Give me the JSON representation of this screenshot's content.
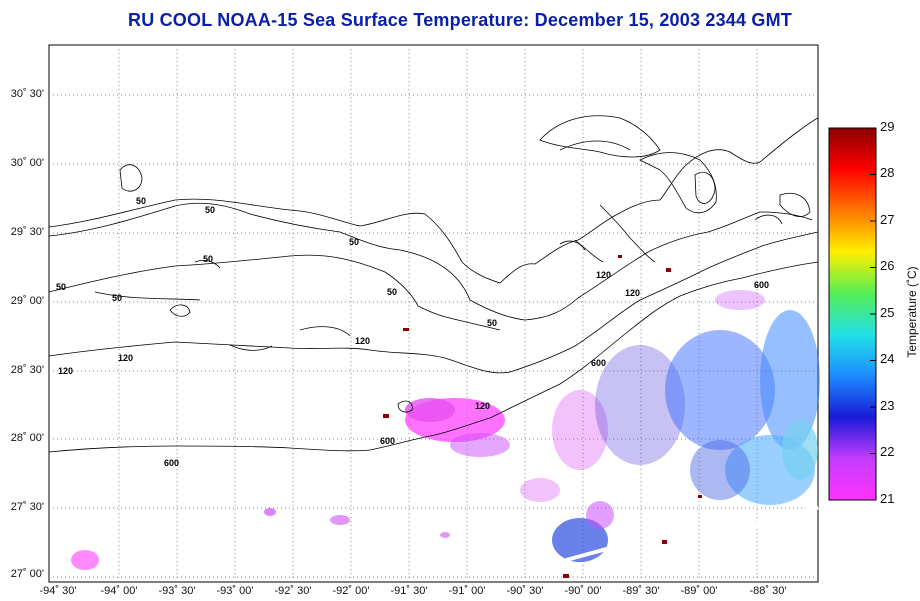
{
  "title": "RU COOL  NOAA-15  Sea Surface Temperature:  December 15, 2003 2344 GMT",
  "map": {
    "lat_labels": [
      "30˚ 30'",
      "30˚ 00'",
      "29˚ 30'",
      "29˚ 00'",
      "28˚ 30'",
      "28˚ 00'",
      "27˚ 30'",
      "27˚ 00'"
    ],
    "lon_labels": [
      "-94˚ 30'",
      "-94˚ 00'",
      "-93˚ 30'",
      "-93˚ 00'",
      "-92˚ 30'",
      "-92˚ 00'",
      "-91˚ 30'",
      "-91˚ 00'",
      "-90˚ 30'",
      "-90˚ 00'",
      "-89˚ 30'",
      "-89˚ 00'",
      "-88˚ 30'"
    ],
    "contour_labels": [
      "50",
      "50",
      "50",
      "50",
      "50",
      "50",
      "50",
      "50",
      "120",
      "120",
      "120",
      "120",
      "120",
      "120",
      "600",
      "600",
      "600",
      "600"
    ],
    "colors": {
      "land_outline": "#000000",
      "grid": "#888888",
      "title": "#0a1fa8"
    }
  },
  "colorbar": {
    "title": "Temperature (˚C)",
    "ticks": [
      "29",
      "28",
      "27",
      "26",
      "25",
      "24",
      "23",
      "22",
      "21"
    ],
    "min": 21,
    "max": 29,
    "colors": [
      "#ff33ff",
      "#c33cff",
      "#1a1ad8",
      "#1c8cff",
      "#22e0e6",
      "#55ee55",
      "#ffee00",
      "#ff7700",
      "#ff0000",
      "#8b0000"
    ]
  }
}
